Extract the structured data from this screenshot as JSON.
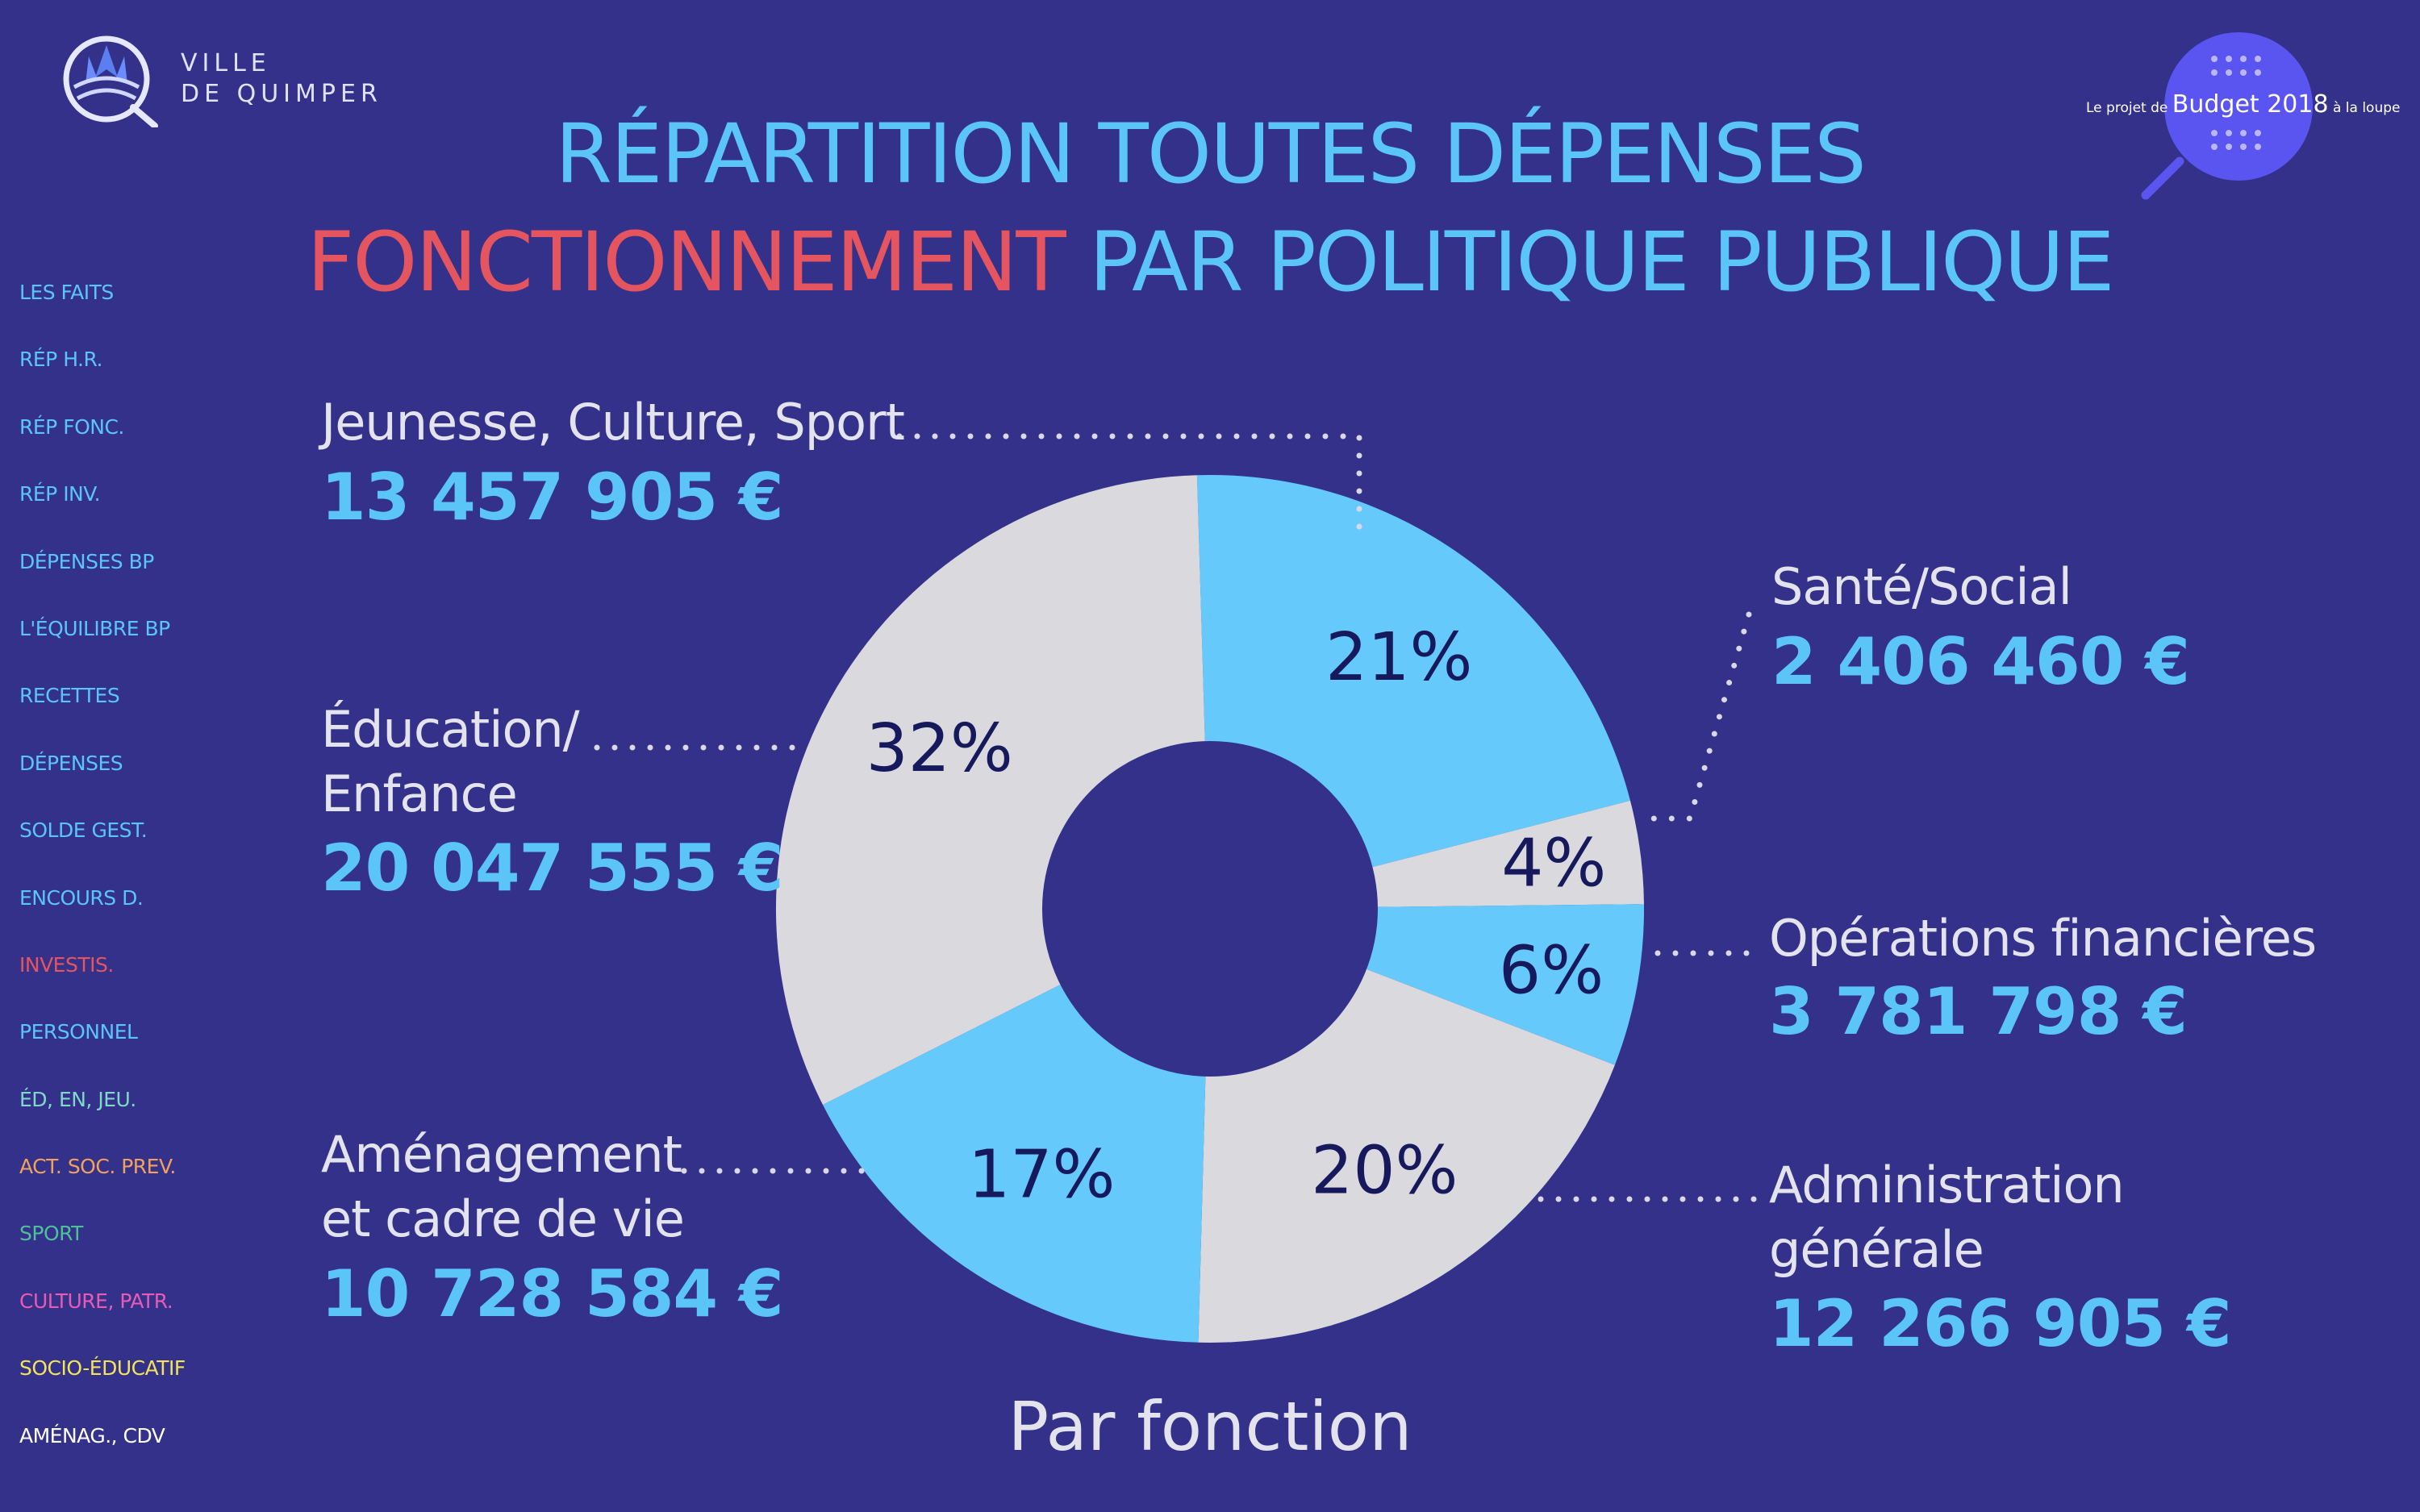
{
  "brand": {
    "line1": "VILLE",
    "line2": "DE QUIMPER",
    "budget_prefix": "Le projet de",
    "budget_main": "Budget 2018",
    "budget_suffix": "à la loupe"
  },
  "title": {
    "line1": "RÉPARTITION TOUTES DÉPENSES",
    "line2_accent": "FONCTIONNEMENT",
    "line2_rest": "PAR POLITIQUE PUBLIQUE"
  },
  "sidebar": {
    "items": [
      {
        "label": "LES FAITS",
        "color": "#5bc5f7"
      },
      {
        "label": "RÉP H.R.",
        "color": "#5bc5f7"
      },
      {
        "label": "RÉP FONC.",
        "color": "#5bc5f7"
      },
      {
        "label": "RÉP INV.",
        "color": "#5bc5f7"
      },
      {
        "label": "DÉPENSES BP",
        "color": "#5bc5f7"
      },
      {
        "label": "L'ÉQUILIBRE BP",
        "color": "#5bc5f7"
      },
      {
        "label": "RECETTES",
        "color": "#5bc5f7"
      },
      {
        "label": "DÉPENSES",
        "color": "#5bc5f7"
      },
      {
        "label": "SOLDE GEST.",
        "color": "#5bc5f7"
      },
      {
        "label": "ENCOURS D.",
        "color": "#5bc5f7"
      },
      {
        "label": "INVESTIS.",
        "color": "#e5555f"
      },
      {
        "label": "PERSONNEL",
        "color": "#5bc5f7"
      },
      {
        "label": "ÉD, EN, JEU.",
        "color": "#7fd8c8"
      },
      {
        "label": "ACT. SOC. PREV.",
        "color": "#f2a15e"
      },
      {
        "label": "SPORT",
        "color": "#4fbf9a"
      },
      {
        "label": "CULTURE, PATR.",
        "color": "#e85bb5"
      },
      {
        "label": "SOCIO-ÉDUCATIF",
        "color": "#f2e35a"
      },
      {
        "label": "AMÉNAG., CDV",
        "color": "#ffffff"
      }
    ]
  },
  "chart_data": {
    "type": "pie",
    "subtitle": "Par fonction",
    "colors": {
      "light": "#65c9fc",
      "grey": "#d9d9de",
      "pct_text": "#161a5c",
      "hole": "#33318a"
    },
    "slices": [
      {
        "name": "Jeunesse, Culture, Sport",
        "pct_label": "21%",
        "percent": 21,
        "amount": "13 457 905 €",
        "value": 13457905,
        "color": "#65c9fc"
      },
      {
        "name": "Santé/Social",
        "pct_label": "4%",
        "percent": 4,
        "amount": "2 406 460 €",
        "value": 2406460,
        "color": "#d9d9de"
      },
      {
        "name": "Opérations financières",
        "pct_label": "6%",
        "percent": 6,
        "amount": "3 781 798 €",
        "value": 3781798,
        "color": "#65c9fc"
      },
      {
        "name": "Administration générale",
        "pct_label": "20%",
        "percent": 20,
        "amount": "12 266 905 €",
        "value": 12266905,
        "color": "#d9d9de"
      },
      {
        "name": "Aménagement et cadre de vie",
        "pct_label": "17%",
        "percent": 17,
        "amount": "10 728 584 €",
        "value": 10728584,
        "color": "#65c9fc"
      },
      {
        "name": "Éducation/ Enfance",
        "pct_label": "32%",
        "percent": 32,
        "amount": "20 047 555 €",
        "value": 20047555,
        "color": "#d9d9de"
      }
    ],
    "labels": {
      "jeunesse": {
        "line1": "Jeunesse, Culture, Sport",
        "amount": "13 457 905 €"
      },
      "sante": {
        "line1": "Santé/Social",
        "amount": "2 406 460 €"
      },
      "operations": {
        "line1": "Opérations financières",
        "amount": "3 781 798 €"
      },
      "administration": {
        "line1": "Administration",
        "line2": "générale",
        "amount": "12 266 905 €"
      },
      "amenagement": {
        "line1": "Aménagement",
        "line2": "et cadre de vie",
        "amount": "10 728 584 €"
      },
      "education": {
        "line1": "Éducation/",
        "line2": "Enfance",
        "amount": "20 047 555 €"
      }
    }
  }
}
